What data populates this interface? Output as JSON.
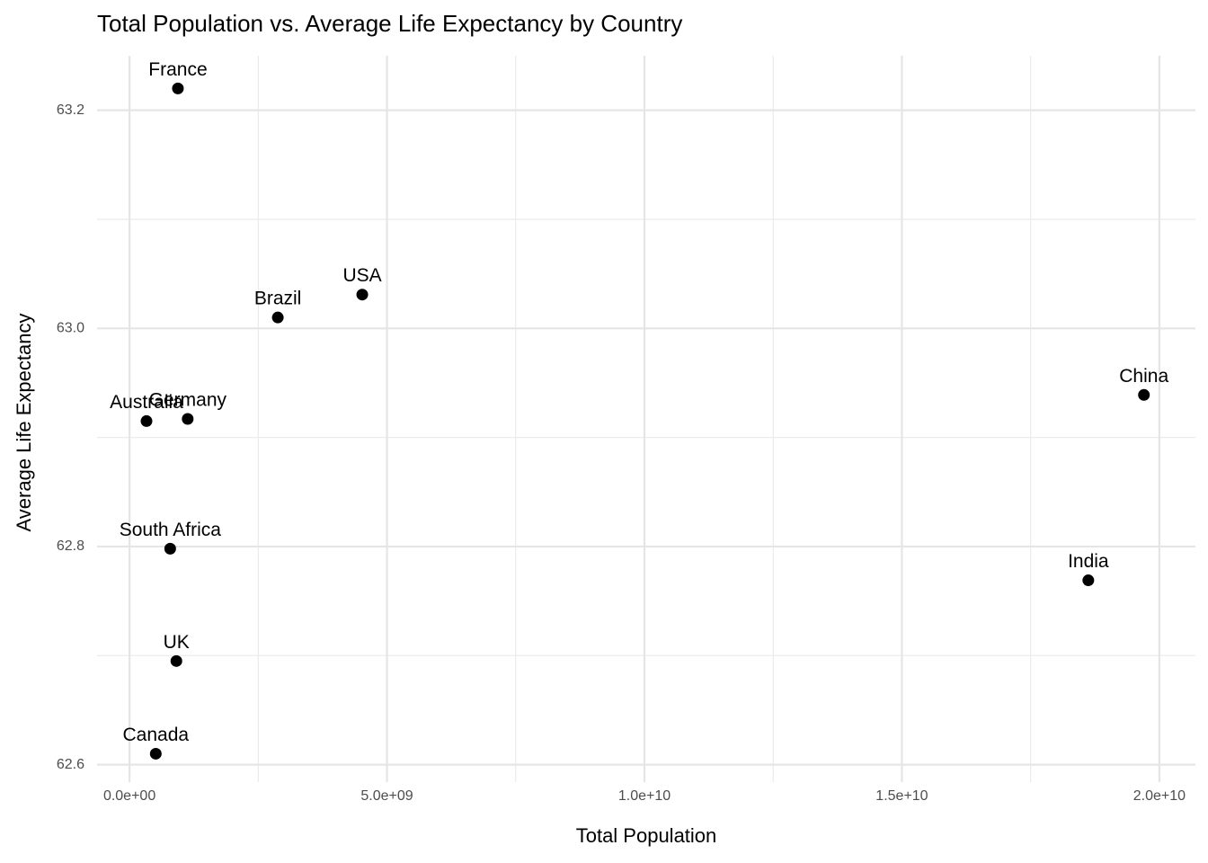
{
  "chart_data": {
    "type": "scatter",
    "title": "Total Population vs. Average Life Expectancy by Country",
    "x_label": "Total Population",
    "y_label": "Average Life Expectancy",
    "labels": [
      "France",
      "USA",
      "Brazil",
      "Germany",
      "Australia",
      "China",
      "South Africa",
      "India",
      "UK",
      "Canada"
    ],
    "x": [
      940000000,
      4520000000,
      2880000000,
      1130000000,
      330000000,
      19700000000,
      790000000,
      18620000000,
      910000000,
      510000000
    ],
    "values": [
      63.22,
      63.031,
      63.01,
      62.917,
      62.915,
      62.939,
      62.798,
      62.769,
      62.695,
      62.61
    ],
    "color": "#000000",
    "xlim": [
      -630000000,
      20700000000
    ],
    "ylim": [
      62.584,
      63.25
    ],
    "xticks": [
      {
        "value": 0,
        "label": "0.0e+00"
      },
      {
        "value": 5000000000,
        "label": "5.0e+09"
      },
      {
        "value": 10000000000,
        "label": "1.0e+10"
      },
      {
        "value": 15000000000,
        "label": "1.5e+10"
      },
      {
        "value": 20000000000,
        "label": "2.0e+10"
      }
    ],
    "yticks": [
      62.6,
      62.8,
      {
        "value": 63,
        "label": "63.0"
      },
      63.2
    ],
    "x_minor_grid": [
      2500000000,
      7500000000,
      12500000000,
      17500000000
    ],
    "y_minor_grid": [
      62.7,
      62.9,
      63.1
    ],
    "grid": true
  }
}
